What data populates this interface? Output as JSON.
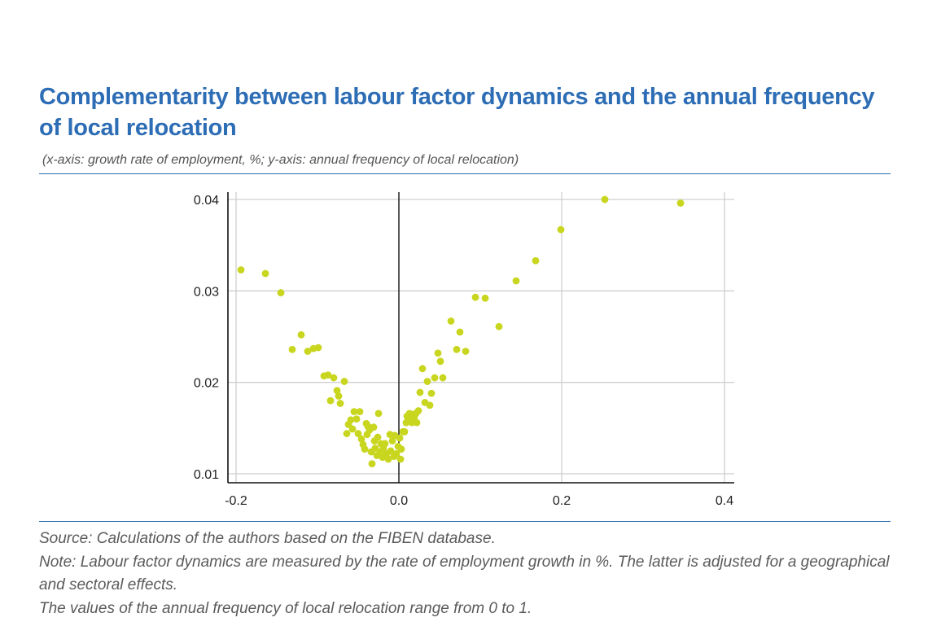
{
  "header": {
    "title": "Complementarity between labour factor dynamics and the annual frequency of local relocation",
    "subtitle": "(x-axis: growth rate of employment, %; y-axis: annual frequency of local relocation)"
  },
  "footer": {
    "source": "Source: Calculations of the authors based on the FIBEN database.",
    "note": "Note: Labour factor dynamics are measured by the rate of employment growth in %. The latter is adjusted for a geographical and sectoral effects.",
    "range_note": "The values of the annual frequency of local relocation range from 0 to 1."
  },
  "chart_data": {
    "type": "scatter",
    "title": "",
    "xlabel": "",
    "ylabel": "",
    "xlim": [
      -0.2,
      0.4
    ],
    "ylim": [
      0.01,
      0.04
    ],
    "x_ticks": [
      "-0.2",
      "0.0",
      "0.2",
      "0.4"
    ],
    "y_ticks": [
      "0.04",
      "0.03",
      "0.02",
      "0.01"
    ],
    "grid": true,
    "marker_color": "#c9d61f",
    "points": [
      [
        -0.194,
        0.0323
      ],
      [
        -0.164,
        0.0319
      ],
      [
        -0.145,
        0.0298
      ],
      [
        -0.131,
        0.0236
      ],
      [
        -0.12,
        0.0252
      ],
      [
        -0.112,
        0.0234
      ],
      [
        -0.105,
        0.0237
      ],
      [
        -0.099,
        0.0238
      ],
      [
        -0.092,
        0.0207
      ],
      [
        -0.087,
        0.0208
      ],
      [
        -0.084,
        0.018
      ],
      [
        -0.08,
        0.0205
      ],
      [
        -0.076,
        0.0191
      ],
      [
        -0.074,
        0.0185
      ],
      [
        -0.072,
        0.0177
      ],
      [
        -0.067,
        0.0201
      ],
      [
        -0.064,
        0.0144
      ],
      [
        -0.062,
        0.0154
      ],
      [
        -0.059,
        0.0159
      ],
      [
        -0.057,
        0.0149
      ],
      [
        -0.055,
        0.0168
      ],
      [
        -0.052,
        0.016
      ],
      [
        -0.05,
        0.0144
      ],
      [
        -0.048,
        0.0168
      ],
      [
        -0.046,
        0.0138
      ],
      [
        -0.044,
        0.0132
      ],
      [
        -0.042,
        0.0127
      ],
      [
        -0.04,
        0.0155
      ],
      [
        -0.039,
        0.0143
      ],
      [
        -0.038,
        0.0152
      ],
      [
        -0.036,
        0.0148
      ],
      [
        -0.034,
        0.0124
      ],
      [
        -0.033,
        0.0111
      ],
      [
        -0.031,
        0.0151
      ],
      [
        -0.03,
        0.0136
      ],
      [
        -0.029,
        0.0128
      ],
      [
        -0.027,
        0.012
      ],
      [
        -0.026,
        0.014
      ],
      [
        -0.025,
        0.0166
      ],
      [
        -0.023,
        0.0124
      ],
      [
        -0.022,
        0.0133
      ],
      [
        -0.02,
        0.0118
      ],
      [
        -0.019,
        0.0128
      ],
      [
        -0.017,
        0.0133
      ],
      [
        -0.015,
        0.0122
      ],
      [
        -0.013,
        0.0116
      ],
      [
        -0.011,
        0.0143
      ],
      [
        -0.01,
        0.0125
      ],
      [
        -0.008,
        0.0136
      ],
      [
        -0.006,
        0.0119
      ],
      [
        -0.005,
        0.0142
      ],
      [
        -0.003,
        0.0122
      ],
      [
        -0.001,
        0.013
      ],
      [
        0.001,
        0.0139
      ],
      [
        0.002,
        0.0116
      ],
      [
        0.003,
        0.0127
      ],
      [
        0.005,
        0.0146
      ],
      [
        0.007,
        0.0146
      ],
      [
        0.009,
        0.0156
      ],
      [
        0.01,
        0.0163
      ],
      [
        0.012,
        0.0158
      ],
      [
        0.013,
        0.0166
      ],
      [
        0.015,
        0.016
      ],
      [
        0.016,
        0.0156
      ],
      [
        0.017,
        0.0165
      ],
      [
        0.019,
        0.0162
      ],
      [
        0.021,
        0.0166
      ],
      [
        0.022,
        0.0156
      ],
      [
        0.024,
        0.0169
      ],
      [
        0.026,
        0.0189
      ],
      [
        0.029,
        0.0215
      ],
      [
        0.032,
        0.0178
      ],
      [
        0.035,
        0.0201
      ],
      [
        0.038,
        0.0175
      ],
      [
        0.04,
        0.0188
      ],
      [
        0.044,
        0.0205
      ],
      [
        0.048,
        0.0232
      ],
      [
        0.051,
        0.0223
      ],
      [
        0.054,
        0.0205
      ],
      [
        0.064,
        0.0267
      ],
      [
        0.071,
        0.0236
      ],
      [
        0.075,
        0.0255
      ],
      [
        0.082,
        0.0234
      ],
      [
        0.094,
        0.0293
      ],
      [
        0.106,
        0.0292
      ],
      [
        0.123,
        0.0261
      ],
      [
        0.144,
        0.0311
      ],
      [
        0.168,
        0.0333
      ],
      [
        0.199,
        0.0367
      ],
      [
        0.253,
        0.04
      ],
      [
        0.346,
        0.0396
      ]
    ]
  }
}
